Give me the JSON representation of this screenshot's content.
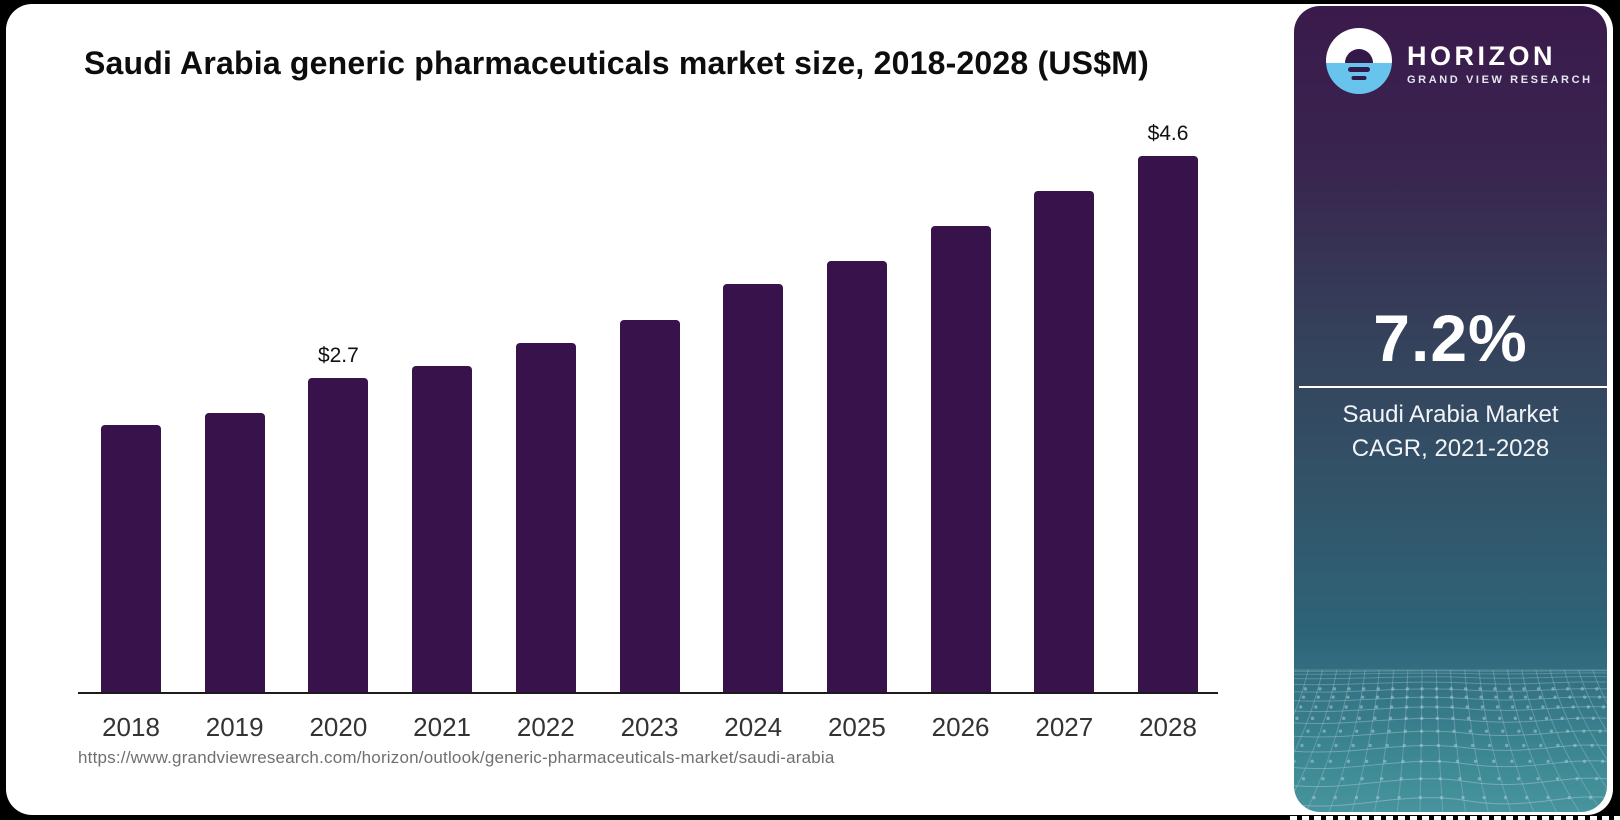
{
  "chart": {
    "title": "Saudi Arabia generic pharmaceuticals market size, 2018-2028 (US$M)",
    "source_url": "https://www.grandviewresearch.com/horizon/outlook/generic-pharmaceuticals-market/saudi-arabia",
    "bar_color": "#37124B",
    "axis_color": "#1c1c1c"
  },
  "chart_data": {
    "type": "bar",
    "title": "Saudi Arabia generic pharmaceuticals market size, 2018-2028 (US$M)",
    "categories": [
      "2018",
      "2019",
      "2020",
      "2021",
      "2022",
      "2023",
      "2024",
      "2025",
      "2026",
      "2027",
      "2028"
    ],
    "values": [
      2.3,
      2.4,
      2.7,
      2.8,
      3.0,
      3.2,
      3.5,
      3.7,
      4.0,
      4.3,
      4.6
    ],
    "point_labels": {
      "2020": "$2.7",
      "2028": "$4.6"
    },
    "xlabel": "",
    "ylabel": "US$M",
    "ylim": [
      0,
      5
    ],
    "grid": false,
    "legend": false,
    "bar_color": "#37124B"
  },
  "sidebar": {
    "brand": {
      "name": "HORIZON",
      "tagline": "GRAND VIEW RESEARCH"
    },
    "stat": {
      "value": "7.2%",
      "caption_line1": "Saudi Arabia Market",
      "caption_line2": "CAGR, 2021-2028"
    },
    "colors": {
      "gradient_top": "#3a1a4c",
      "gradient_bottom": "#47949e",
      "logo_water": "#68c4ec",
      "mesh_line": "#9dc3cc"
    }
  }
}
